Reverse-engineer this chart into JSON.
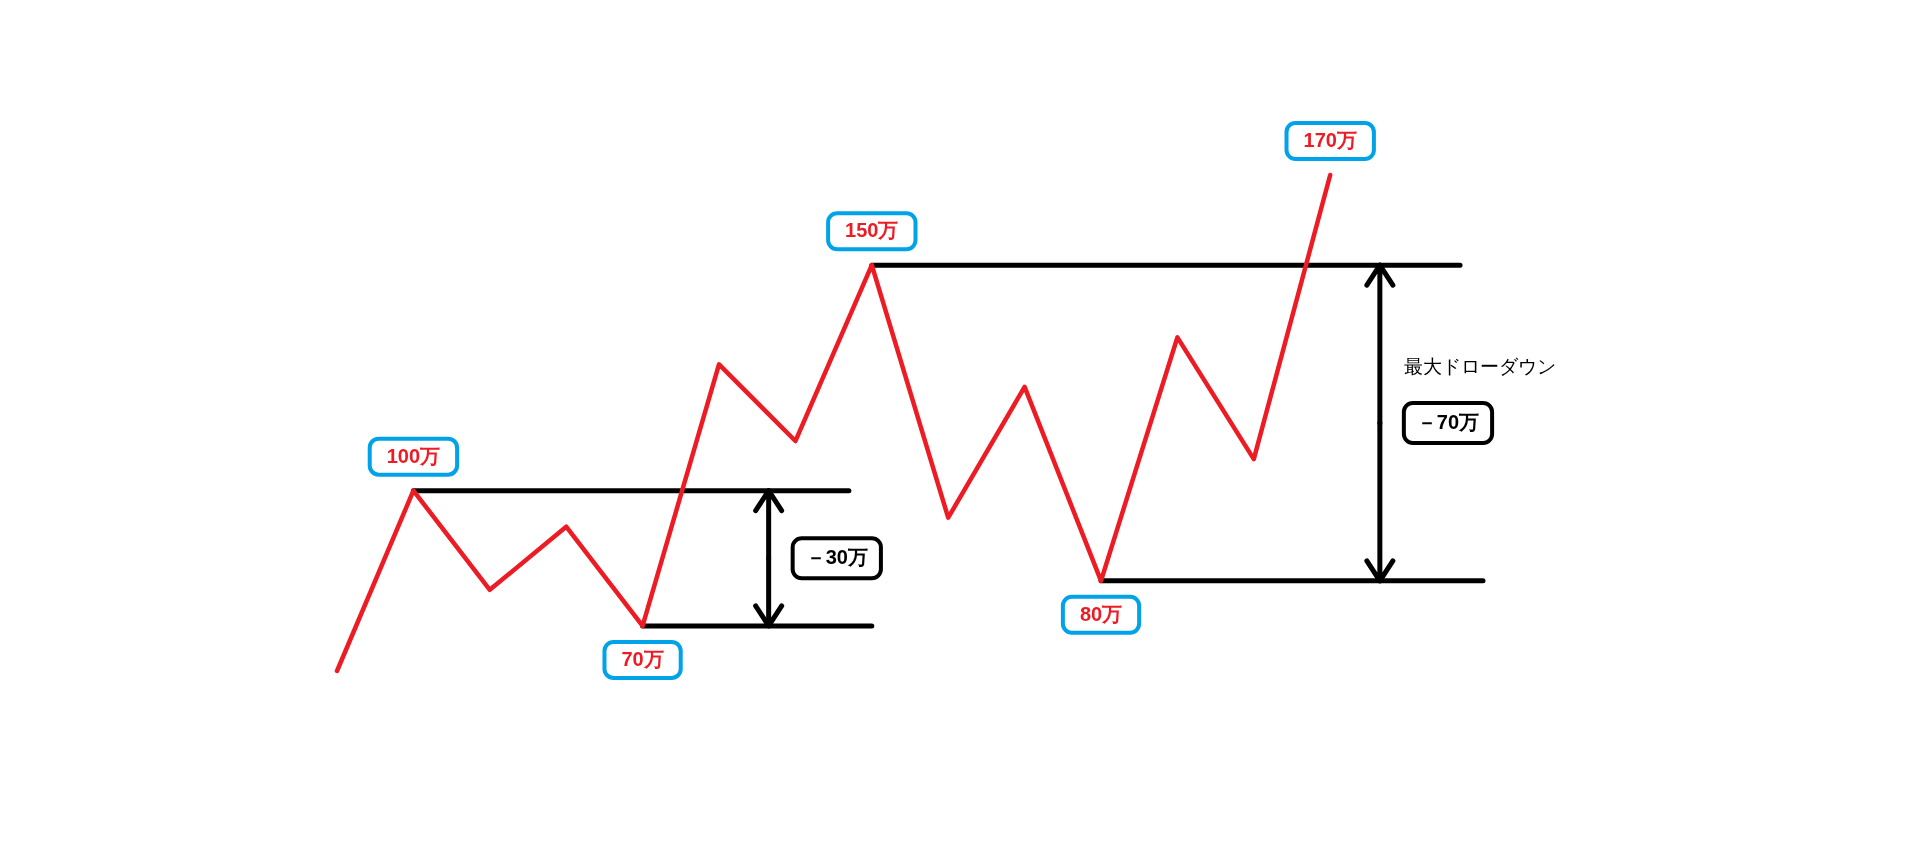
{
  "chart_data": {
    "type": "line",
    "categories": [
      null,
      null,
      null,
      null,
      null,
      null,
      null,
      null,
      null,
      null,
      null,
      null,
      null,
      null
    ],
    "values": [
      60,
      100,
      78,
      92,
      70,
      128,
      111,
      150,
      94,
      123,
      80,
      134,
      107,
      170
    ],
    "value_labels": [
      null,
      "100万",
      null,
      null,
      "70万",
      null,
      null,
      "150万",
      null,
      null,
      "80万",
      null,
      null,
      "170万"
    ],
    "color": "#ed1c24",
    "ref_lines": [
      {
        "axis": "y",
        "value": 100,
        "color": "#000000"
      },
      {
        "axis": "y",
        "value": 70,
        "color": "#000000"
      },
      {
        "axis": "y",
        "value": 150,
        "color": "#000000"
      },
      {
        "axis": "y",
        "value": 80,
        "color": "#000000"
      }
    ],
    "annotations": [
      "－30万",
      "－70万",
      "最大ドローダウン"
    ],
    "tick_labels": false
  }
}
